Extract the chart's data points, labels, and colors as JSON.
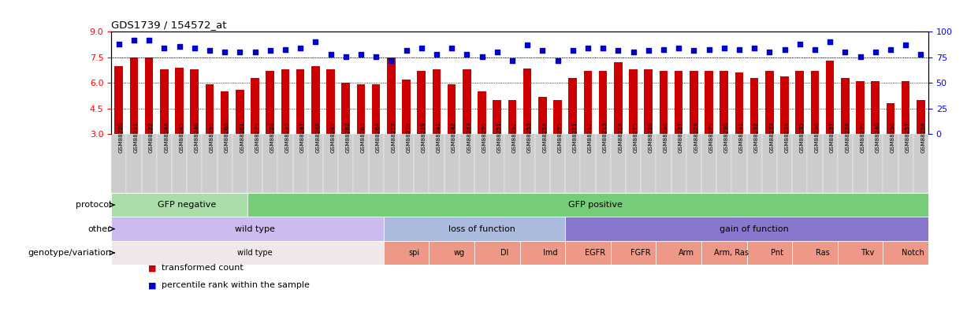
{
  "title": "GDS1739 / 154572_at",
  "samples": [
    "GSM88220",
    "GSM88221",
    "GSM88222",
    "GSM88244",
    "GSM88245",
    "GSM88246",
    "GSM88259",
    "GSM88260",
    "GSM88261",
    "GSM88223",
    "GSM88224",
    "GSM88225",
    "GSM88247",
    "GSM88248",
    "GSM88249",
    "GSM88262",
    "GSM88263",
    "GSM88264",
    "GSM88217",
    "GSM88218",
    "GSM88219",
    "GSM88241",
    "GSM88242",
    "GSM88243",
    "GSM88250",
    "GSM88251",
    "GSM88252",
    "GSM88253",
    "GSM88254",
    "GSM88255",
    "GSM88211",
    "GSM88212",
    "GSM88213",
    "GSM88214",
    "GSM88215",
    "GSM88216",
    "GSM88226",
    "GSM88227",
    "GSM88228",
    "GSM88229",
    "GSM88230",
    "GSM88231",
    "GSM88232",
    "GSM88233",
    "GSM88234",
    "GSM88235",
    "GSM88236",
    "GSM88237",
    "GSM88238",
    "GSM88239",
    "GSM88240",
    "GSM88256",
    "GSM88257",
    "GSM88258"
  ],
  "bar_values": [
    7.0,
    7.5,
    7.5,
    6.8,
    6.9,
    6.8,
    5.9,
    5.5,
    5.6,
    6.3,
    6.7,
    6.8,
    6.8,
    7.0,
    6.8,
    6.0,
    5.9,
    5.9,
    7.5,
    6.2,
    6.7,
    6.8,
    5.9,
    6.8,
    5.5,
    5.0,
    5.0,
    6.85,
    5.2,
    5.0,
    6.3,
    6.7,
    6.7,
    7.2,
    6.8,
    6.8,
    6.7,
    6.7,
    6.7,
    6.7,
    6.7,
    6.6,
    6.3,
    6.7,
    6.4,
    6.7,
    6.7,
    7.3,
    6.3,
    6.1,
    6.1,
    4.8,
    6.1,
    5.0
  ],
  "scatter_values_pct": [
    88,
    92,
    92,
    84,
    86,
    84,
    82,
    80,
    80,
    80,
    82,
    83,
    84,
    90,
    78,
    76,
    78,
    76,
    72,
    82,
    84,
    78,
    84,
    78,
    76,
    80,
    72,
    87,
    82,
    72,
    82,
    84,
    84,
    82,
    80,
    82,
    83,
    84,
    82,
    83,
    84,
    83,
    84,
    80,
    83,
    88,
    83,
    90,
    80,
    76,
    80,
    83,
    87,
    78
  ],
  "ylim_left": [
    3,
    9
  ],
  "ylim_right": [
    0,
    100
  ],
  "yticks_left": [
    3,
    4.5,
    6,
    7.5,
    9
  ],
  "yticks_right": [
    0,
    25,
    50,
    75,
    100
  ],
  "bar_color": "#CC0000",
  "scatter_color": "#0000CC",
  "protocol_groups": [
    {
      "label": "GFP negative",
      "start": 0,
      "end": 9,
      "color": "#AADDAA"
    },
    {
      "label": "GFP positive",
      "start": 9,
      "end": 54,
      "color": "#77CC77"
    }
  ],
  "other_groups": [
    {
      "label": "wild type",
      "start": 0,
      "end": 18,
      "color": "#CCBBEE"
    },
    {
      "label": "loss of function",
      "start": 18,
      "end": 30,
      "color": "#AABBDD"
    },
    {
      "label": "gain of function",
      "start": 30,
      "end": 54,
      "color": "#8877CC"
    }
  ],
  "genotype_groups": [
    {
      "label": "wild type",
      "start": 0,
      "end": 18,
      "color": "#F0E8E8"
    },
    {
      "label": "spi",
      "start": 18,
      "end": 21,
      "color": "#EE9988"
    },
    {
      "label": "wg",
      "start": 21,
      "end": 24,
      "color": "#EE9988"
    },
    {
      "label": "Dl",
      "start": 24,
      "end": 27,
      "color": "#EE9988"
    },
    {
      "label": "Imd",
      "start": 27,
      "end": 30,
      "color": "#EE9988"
    },
    {
      "label": "EGFR",
      "start": 30,
      "end": 33,
      "color": "#EE9988"
    },
    {
      "label": "FGFR",
      "start": 33,
      "end": 36,
      "color": "#EE9988"
    },
    {
      "label": "Arm",
      "start": 36,
      "end": 39,
      "color": "#EE9988"
    },
    {
      "label": "Arm, Ras",
      "start": 39,
      "end": 42,
      "color": "#EE9988"
    },
    {
      "label": "Pnt",
      "start": 42,
      "end": 45,
      "color": "#EE9988"
    },
    {
      "label": "Ras",
      "start": 45,
      "end": 48,
      "color": "#EE9988"
    },
    {
      "label": "Tkv",
      "start": 48,
      "end": 51,
      "color": "#EE9988"
    },
    {
      "label": "Notch",
      "start": 51,
      "end": 54,
      "color": "#EE9988"
    }
  ],
  "xtick_bg_color": "#CCCCCC",
  "legend_labels": [
    "transformed count",
    "percentile rank within the sample"
  ],
  "legend_colors": [
    "#CC0000",
    "#0000CC"
  ]
}
